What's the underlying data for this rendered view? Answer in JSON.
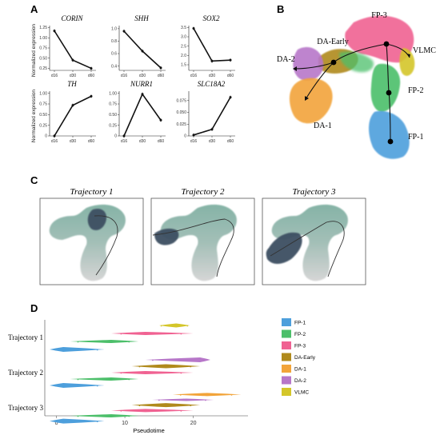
{
  "panels": {
    "a": "A",
    "b": "B",
    "c": "C",
    "d": "D"
  },
  "chart_data": [
    {
      "type": "line",
      "panel": "A",
      "ylabel": "Normalized expression",
      "x": [
        "d16",
        "d30",
        "d60"
      ],
      "subplots": [
        {
          "title": "CORIN",
          "yticks": [
            "0.25",
            "0.50",
            "0.75",
            "1.00",
            "1.25"
          ],
          "ylim": [
            0.2,
            1.3
          ],
          "values": [
            1.17,
            0.45,
            0.25
          ]
        },
        {
          "title": "SHH",
          "yticks": [
            "0.4",
            "0.6",
            "0.8",
            "1.0"
          ],
          "ylim": [
            0.33,
            1.05
          ],
          "values": [
            0.96,
            0.64,
            0.37
          ]
        },
        {
          "title": "SOX2",
          "yticks": [
            "1.5",
            "2.0",
            "2.5",
            "3.0",
            "3.5"
          ],
          "ylim": [
            1.2,
            3.6
          ],
          "values": [
            3.45,
            1.7,
            1.75
          ]
        },
        {
          "title": "TH",
          "yticks": [
            "0",
            "0.25",
            "0.50",
            "0.75",
            "1.00"
          ],
          "ylim": [
            0,
            1.05
          ],
          "values": [
            0.0,
            0.72,
            0.93
          ]
        },
        {
          "title": "NURR1",
          "yticks": [
            "0",
            "0.25",
            "0.50",
            "0.75",
            "1.00"
          ],
          "ylim": [
            0,
            1.05
          ],
          "values": [
            0.0,
            0.98,
            0.37
          ]
        },
        {
          "title": "SLC18A2",
          "yticks": [
            "0",
            "0.025",
            "0.050",
            "0.075"
          ],
          "ylim": [
            0,
            0.095
          ],
          "values": [
            0.002,
            0.014,
            0.082
          ]
        }
      ]
    },
    {
      "type": "scatter",
      "panel": "B",
      "clusters": [
        {
          "name": "FP-3",
          "color": "#f06292",
          "x": 0.72,
          "y": 0.25
        },
        {
          "name": "VLMC",
          "color": "#d4c62a",
          "x": 0.9,
          "y": 0.38
        },
        {
          "name": "FP-2",
          "color": "#4cbf6a",
          "x": 0.84,
          "y": 0.55
        },
        {
          "name": "FP-1",
          "color": "#4d9fdc",
          "x": 0.86,
          "y": 0.82
        },
        {
          "name": "DA-Early",
          "color": "#b08a1c",
          "x": 0.45,
          "y": 0.33
        },
        {
          "name": "DA-2",
          "color": "#b777c9",
          "x": 0.18,
          "y": 0.36
        },
        {
          "name": "DA-1",
          "color": "#f2a43a",
          "x": 0.25,
          "y": 0.62
        }
      ]
    },
    {
      "type": "scatter",
      "panel": "C",
      "trajectories": [
        "Trajectory 1",
        "Trajectory 2",
        "Trajectory 3"
      ]
    },
    {
      "type": "scatter",
      "panel": "D",
      "xlabel": "Pseudotime",
      "xticks": [
        0,
        10,
        20
      ],
      "xlim": [
        -1,
        28
      ],
      "categories": [
        "Trajectory 1",
        "Trajectory 2",
        "Trajectory 3"
      ],
      "legend": [
        {
          "name": "FP-1",
          "color": "#4d9fdc"
        },
        {
          "name": "FP-2",
          "color": "#4cbf6a"
        },
        {
          "name": "FP-3",
          "color": "#f06292"
        },
        {
          "name": "DA-Early",
          "color": "#b08a1c"
        },
        {
          "name": "DA-1",
          "color": "#f2a43a"
        },
        {
          "name": "DA-2",
          "color": "#b777c9"
        },
        {
          "name": "VLMC",
          "color": "#d4c62a"
        }
      ],
      "ridges": [
        {
          "trajectory": 0,
          "cluster": "VLMC",
          "start": 15,
          "end": 19.5,
          "peak": 17.5,
          "width": 5
        },
        {
          "trajectory": 0,
          "cluster": "FP-3",
          "start": 8,
          "end": 20,
          "peak": 13,
          "width": 4
        },
        {
          "trajectory": 0,
          "cluster": "FP-2",
          "start": 2,
          "end": 12,
          "peak": 8,
          "width": 4
        },
        {
          "trajectory": 0,
          "cluster": "FP-1",
          "start": -1,
          "end": 7,
          "peak": 1,
          "width": 6
        },
        {
          "trajectory": 1,
          "cluster": "DA-2",
          "start": 13,
          "end": 22.5,
          "peak": 21,
          "width": 6
        },
        {
          "trajectory": 1,
          "cluster": "DA-Early",
          "start": 11,
          "end": 21,
          "peak": 16,
          "width": 5
        },
        {
          "trajectory": 1,
          "cluster": "FP-3",
          "start": 8,
          "end": 20,
          "peak": 13,
          "width": 4
        },
        {
          "trajectory": 1,
          "cluster": "FP-2",
          "start": 2,
          "end": 12,
          "peak": 8,
          "width": 4
        },
        {
          "trajectory": 1,
          "cluster": "FP-1",
          "start": -1,
          "end": 7,
          "peak": 1,
          "width": 6
        },
        {
          "trajectory": 2,
          "cluster": "DA-1",
          "start": 17,
          "end": 27,
          "peak": 22,
          "width": 4
        },
        {
          "trajectory": 2,
          "cluster": "DA-2",
          "start": 14,
          "end": 23,
          "peak": 19,
          "width": 3
        },
        {
          "trajectory": 2,
          "cluster": "DA-Early",
          "start": 11,
          "end": 21,
          "peak": 16,
          "width": 5
        },
        {
          "trajectory": 2,
          "cluster": "FP-3",
          "start": 8,
          "end": 20,
          "peak": 13,
          "width": 4
        },
        {
          "trajectory": 2,
          "cluster": "FP-2",
          "start": 2,
          "end": 12,
          "peak": 8,
          "width": 4
        },
        {
          "trajectory": 2,
          "cluster": "FP-1",
          "start": -1,
          "end": 7,
          "peak": 1,
          "width": 6
        }
      ]
    }
  ]
}
